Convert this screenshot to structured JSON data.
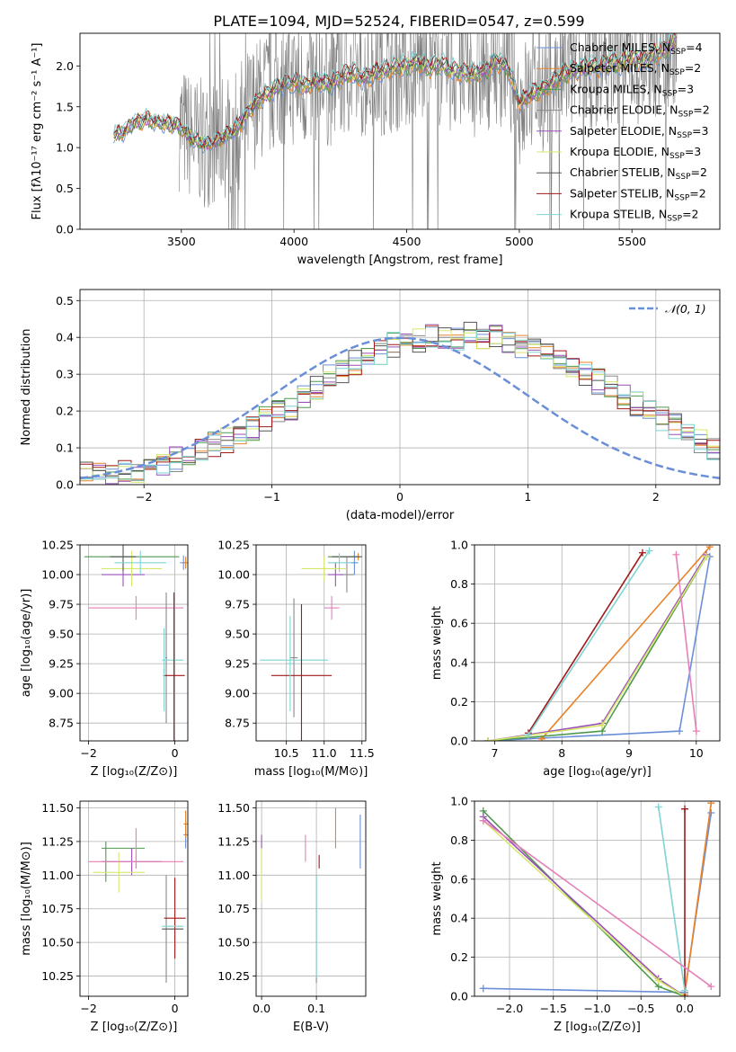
{
  "figure_title": "PLATE=1094, MJD=52524, FIBERID=0547, z=0.599",
  "models": [
    {
      "name": "Chabrier MILES, N$_{SSP}$=4",
      "short": "Chabrier MILES, N",
      "nssp": "4",
      "color": "#6a8fd8"
    },
    {
      "name": "Salpeter MILES, N$_{SSP}$=2",
      "short": "Salpeter MILES, N",
      "nssp": "2",
      "color": "#e8832a"
    },
    {
      "name": "Kroupa MILES, N$_{SSP}$=3",
      "short": "Kroupa MILES, N",
      "nssp": "3",
      "color": "#4f9a4f"
    },
    {
      "name": "Chabrier ELODIE, N$_{SSP}$=2",
      "short": "Chabrier ELODIE, N",
      "nssp": "2",
      "color": "#888888"
    },
    {
      "name": "Salpeter ELODIE, N$_{SSP}$=3",
      "short": "Salpeter ELODIE, N",
      "nssp": "3",
      "color": "#9b4fb8"
    },
    {
      "name": "Kroupa ELODIE, N$_{SSP}$=3",
      "short": "Kroupa ELODIE, N",
      "nssp": "3",
      "color": "#d6e86a"
    },
    {
      "name": "Chabrier STELIB, N$_{SSP}$=2",
      "short": "Chabrier STELIB, N",
      "nssp": "2",
      "color": "#555555"
    },
    {
      "name": "Salpeter STELIB, N$_{SSP}$=2",
      "short": "Salpeter STELIB, N",
      "nssp": "2",
      "color": "#a01818"
    },
    {
      "name": "Kroupa STELIB, N$_{SSP}$=2",
      "short": "Kroupa STELIB, N",
      "nssp": "2",
      "color": "#7fd3d3"
    }
  ],
  "extra_colors": {
    "pink": "#e67fb8",
    "data": "#808080",
    "ref": "#6a8fd8"
  },
  "chart_data": [
    {
      "id": "spectrum",
      "type": "line",
      "xlabel": "wavelength [Angstrom, rest frame]",
      "ylabel": "Flux [fλ10⁻¹⁷ erg cm⁻² s⁻¹ A⁻¹]",
      "xlim": [
        3050,
        5890
      ],
      "ylim": [
        0,
        2.4
      ],
      "xticks": [
        "3500",
        "4000",
        "4500",
        "5000",
        "5500"
      ],
      "xtick_values": [
        3500,
        4000,
        4500,
        5000,
        5500
      ],
      "yticks": [
        "0.0",
        "0.5",
        "1.0",
        "1.5",
        "2.0"
      ],
      "ytick_values": [
        0,
        0.5,
        1,
        1.5,
        2
      ],
      "model_envelope": {
        "x": [
          3200,
          3250,
          3300,
          3350,
          3400,
          3450,
          3500,
          3550,
          3600,
          3650,
          3700,
          3750,
          3800,
          3850,
          3900,
          3950,
          4000,
          4050,
          4100,
          4150,
          4200,
          4250,
          4300,
          4350,
          4400,
          4450,
          4500,
          4550,
          4600,
          4650,
          4700,
          4750,
          4800,
          4850,
          4900,
          4950,
          5000,
          5050,
          5100,
          5150,
          5200,
          5250,
          5300,
          5350,
          5400,
          5450,
          5500,
          5550,
          5600,
          5650,
          5700
        ],
        "y": [
          1.15,
          1.2,
          1.32,
          1.35,
          1.3,
          1.3,
          1.25,
          1.1,
          1.05,
          1.08,
          1.15,
          1.25,
          1.45,
          1.6,
          1.7,
          1.78,
          1.8,
          1.75,
          1.82,
          1.78,
          1.85,
          1.92,
          1.85,
          1.9,
          1.95,
          1.98,
          2.0,
          2.05,
          1.98,
          2.02,
          1.95,
          1.92,
          1.9,
          1.95,
          2.05,
          1.98,
          1.55,
          1.65,
          1.72,
          1.8,
          1.9,
          1.95,
          2.0,
          1.98,
          2.05,
          2.02,
          2.1,
          2.05,
          2.15,
          2.2,
          2.35
        ]
      },
      "data_region": [
        3490,
        5700
      ]
    },
    {
      "id": "residuals",
      "type": "histogram",
      "xlabel": "(data-model)/error",
      "ylabel": "Normed distribution",
      "xlim": [
        -2.5,
        2.5
      ],
      "ylim": [
        0,
        0.53
      ],
      "xticks": [
        "−2",
        "−1",
        "0",
        "1",
        "2"
      ],
      "xtick_values": [
        -2,
        -1,
        0,
        1,
        2
      ],
      "yticks": [
        "0.0",
        "0.1",
        "0.2",
        "0.3",
        "0.4",
        "0.5"
      ],
      "ytick_values": [
        0,
        0.1,
        0.2,
        0.3,
        0.4,
        0.5
      ],
      "legend": "𝒩(0, 1)",
      "bins": {
        "start": -2.5,
        "width": 0.1
      },
      "base_density": [
        0.03,
        0.03,
        0.03,
        0.04,
        0.04,
        0.05,
        0.06,
        0.07,
        0.08,
        0.1,
        0.11,
        0.12,
        0.14,
        0.15,
        0.18,
        0.2,
        0.21,
        0.24,
        0.26,
        0.29,
        0.31,
        0.33,
        0.34,
        0.36,
        0.38,
        0.39,
        0.39,
        0.4,
        0.4,
        0.4,
        0.41,
        0.4,
        0.4,
        0.39,
        0.38,
        0.37,
        0.35,
        0.34,
        0.32,
        0.3,
        0.28,
        0.26,
        0.24,
        0.22,
        0.2,
        0.18,
        0.16,
        0.14,
        0.12,
        0.1
      ]
    },
    {
      "id": "age_vs_Z",
      "type": "scatter",
      "xlabel": "Z [log₁₀(Z/Z⊙)]",
      "ylabel": "age  [log₁₀(age/yr)]",
      "xlim": [
        -2.2,
        0.3
      ],
      "ylim": [
        8.6,
        10.25
      ],
      "xticks": [
        "−2",
        "0"
      ],
      "xtick_values": [
        -2,
        0
      ],
      "yticks": [
        "8.75",
        "9.00",
        "9.25",
        "9.50",
        "9.75",
        "10.00",
        "10.25"
      ],
      "ytick_values": [
        8.75,
        9,
        9.25,
        9.5,
        9.75,
        10,
        10.25
      ],
      "points": [
        {
          "x": 0.2,
          "y": 10.1,
          "ex": 0.08,
          "ey": 0.06,
          "c": 0
        },
        {
          "x": 0.25,
          "y": 10.1,
          "ex": 0.05,
          "ey": 0.05,
          "c": 1
        },
        {
          "x": -1.6,
          "y": 10.15,
          "ex": 0.0,
          "ey": 0.0,
          "c": 2
        },
        {
          "x": -1.0,
          "y": 10.15,
          "ex": 1.1,
          "ey": 0.0,
          "c": 2
        },
        {
          "x": -0.4,
          "y": 10.15,
          "ex": 0.0,
          "ey": 0.0,
          "c": 3
        },
        {
          "x": -1.2,
          "y": 10.0,
          "ex": 0.5,
          "ey": 0.1,
          "c": 4
        },
        {
          "x": -1.0,
          "y": 10.05,
          "ex": 0.7,
          "ey": 0.15,
          "c": 5
        },
        {
          "x": -1.2,
          "y": 10.15,
          "ex": 0.3,
          "ey": 0.12,
          "c": 6
        },
        {
          "x": -0.8,
          "y": 10.1,
          "ex": 0.6,
          "ey": 0.1,
          "c": 8
        },
        {
          "x": -0.9,
          "y": 9.72,
          "ex": 1.1,
          "ey": 0.1,
          "c": 9
        },
        {
          "x": -0.2,
          "y": 9.3,
          "ex": 0.02,
          "ey": 0.55,
          "c": 3
        },
        {
          "x": -0.05,
          "y": 9.28,
          "ex": 0.25,
          "ey": 0.0,
          "c": 8
        },
        {
          "x": -0.02,
          "y": 9.15,
          "ex": 0.25,
          "ey": 0.7,
          "c": 7
        },
        {
          "x": -0.25,
          "y": 9.2,
          "ex": 0.02,
          "ey": 0.35,
          "c": 8
        }
      ]
    },
    {
      "id": "age_vs_mass",
      "type": "scatter",
      "xlabel": "mass [log₁₀(M/M⊙)]",
      "ylabel": "",
      "xlim": [
        10.1,
        11.55
      ],
      "ylim": [
        8.6,
        10.25
      ],
      "xticks": [
        "10.5",
        "11.0",
        "11.5"
      ],
      "xtick_values": [
        10.5,
        11,
        11.5
      ],
      "yticks": [
        "8.75",
        "9.00",
        "9.25",
        "9.50",
        "9.75",
        "10.00",
        "10.25"
      ],
      "ytick_values": [
        8.75,
        9,
        9.25,
        9.5,
        9.75,
        10,
        10.25
      ],
      "points": [
        {
          "x": 11.4,
          "y": 10.1,
          "ex": 0.05,
          "ey": 0.1,
          "c": 0
        },
        {
          "x": 11.45,
          "y": 10.15,
          "ex": 0.02,
          "ey": 0.03,
          "c": 1
        },
        {
          "x": 11.25,
          "y": 10.15,
          "ex": 0.2,
          "ey": 0.0,
          "c": 2
        },
        {
          "x": 11.3,
          "y": 10.0,
          "ex": 0.1,
          "ey": 0.15,
          "c": 3
        },
        {
          "x": 11.15,
          "y": 10.0,
          "ex": 0.1,
          "ey": 0.1,
          "c": 4
        },
        {
          "x": 11.0,
          "y": 10.05,
          "ex": 0.3,
          "ey": 0.1,
          "c": 5
        },
        {
          "x": 11.3,
          "y": 10.15,
          "ex": 0.2,
          "ey": 0.0,
          "c": 6
        },
        {
          "x": 11.2,
          "y": 10.1,
          "ex": 0.15,
          "ey": 0.08,
          "c": 8
        },
        {
          "x": 11.1,
          "y": 9.72,
          "ex": 0.1,
          "ey": 0.1,
          "c": 9
        },
        {
          "x": 10.6,
          "y": 9.3,
          "ex": 0.05,
          "ey": 0.5,
          "c": 3
        },
        {
          "x": 10.6,
          "y": 9.28,
          "ex": 0.45,
          "ey": 0.0,
          "c": 8
        },
        {
          "x": 10.7,
          "y": 9.15,
          "ex": 0.4,
          "ey": 0.6,
          "c": 7
        },
        {
          "x": 10.55,
          "y": 9.25,
          "ex": 0.05,
          "ey": 0.4,
          "c": 8
        }
      ]
    },
    {
      "id": "weight_vs_age",
      "type": "line",
      "xlabel": "age  [log₁₀(age/yr)]",
      "ylabel": "mass weight",
      "xlim": [
        6.7,
        10.35
      ],
      "ylim": [
        0,
        1.0
      ],
      "xticks": [
        "7",
        "8",
        "9",
        "10"
      ],
      "xtick_values": [
        7,
        8,
        9,
        10
      ],
      "yticks": [
        "0.0",
        "0.2",
        "0.4",
        "0.6",
        "0.8",
        "1.0"
      ],
      "ytick_values": [
        0,
        0.2,
        0.4,
        0.6,
        0.8,
        1.0
      ],
      "series": [
        {
          "c": 0,
          "x": [
            6.9,
            9.75,
            10.2
          ],
          "y": [
            0.0,
            0.05,
            0.94
          ]
        },
        {
          "c": 1,
          "x": [
            7.7,
            10.2
          ],
          "y": [
            0.01,
            0.99
          ]
        },
        {
          "c": 2,
          "x": [
            6.9,
            8.6,
            10.15
          ],
          "y": [
            0.0,
            0.05,
            0.94
          ]
        },
        {
          "c": 4,
          "x": [
            6.9,
            8.6,
            10.15
          ],
          "y": [
            0.0,
            0.09,
            0.95
          ]
        },
        {
          "c": 5,
          "x": [
            6.9,
            8.6,
            10.15
          ],
          "y": [
            0.0,
            0.08,
            0.94
          ]
        },
        {
          "c": 7,
          "x": [
            7.5,
            9.2
          ],
          "y": [
            0.04,
            0.96
          ]
        },
        {
          "c": 8,
          "x": [
            7.5,
            9.3
          ],
          "y": [
            0.03,
            0.97
          ]
        },
        {
          "c": 9,
          "x": [
            9.7,
            10.0
          ],
          "y": [
            0.95,
            0.05
          ]
        }
      ]
    },
    {
      "id": "mass_vs_Z",
      "type": "scatter",
      "xlabel": "Z [log₁₀(Z/Z⊙)]",
      "ylabel": "mass [log₁₀(M/M⊙)]",
      "xlim": [
        -2.2,
        0.3
      ],
      "ylim": [
        10.1,
        11.55
      ],
      "xticks": [
        "−2",
        "0"
      ],
      "xtick_values": [
        -2,
        0
      ],
      "yticks": [
        "10.25",
        "10.50",
        "10.75",
        "11.00",
        "11.25",
        "11.50"
      ],
      "ytick_values": [
        10.25,
        10.5,
        10.75,
        11,
        11.25,
        11.5
      ],
      "points": [
        {
          "x": 0.25,
          "y": 11.3,
          "ex": 0.05,
          "ey": 0.1,
          "c": 0
        },
        {
          "x": 0.25,
          "y": 11.38,
          "ex": 0.05,
          "ey": 0.1,
          "c": 1
        },
        {
          "x": -1.2,
          "y": 11.2,
          "ex": 0.5,
          "ey": 0.0,
          "c": 2
        },
        {
          "x": -1.6,
          "y": 11.1,
          "ex": 0.0,
          "ey": 0.15,
          "c": 2
        },
        {
          "x": -1.0,
          "y": 11.1,
          "ex": 0.7,
          "ey": 0.1,
          "c": 4
        },
        {
          "x": -1.3,
          "y": 11.02,
          "ex": 0.6,
          "ey": 0.15,
          "c": 5
        },
        {
          "x": -0.9,
          "y": 11.1,
          "ex": 1.1,
          "ey": 0.05,
          "c": 9
        },
        {
          "x": -0.9,
          "y": 11.2,
          "ex": 0.0,
          "ey": 0.15,
          "c": 9
        },
        {
          "x": -0.2,
          "y": 10.6,
          "ex": 0.0,
          "ey": 0.4,
          "c": 3
        },
        {
          "x": 0.0,
          "y": 10.68,
          "ex": 0.25,
          "ey": 0.3,
          "c": 7
        },
        {
          "x": -0.05,
          "y": 10.6,
          "ex": 0.25,
          "ey": 0.0,
          "c": 6
        },
        {
          "x": -0.05,
          "y": 10.62,
          "ex": 0.25,
          "ey": 0.0,
          "c": 8
        }
      ]
    },
    {
      "id": "mass_vs_EBV",
      "type": "scatter",
      "xlabel": "E(B-V)",
      "ylabel": "",
      "xlim": [
        -0.01,
        0.19
      ],
      "ylim": [
        10.1,
        11.55
      ],
      "xticks": [
        "0.0",
        "0.1"
      ],
      "xtick_values": [
        0,
        0.1
      ],
      "yticks": [
        "10.25",
        "10.50",
        "10.75",
        "11.00",
        "11.25",
        "11.50"
      ],
      "ytick_values": [
        10.25,
        10.5,
        10.75,
        11,
        11.25,
        11.5
      ],
      "points": [
        {
          "x": 0.18,
          "y": 11.25,
          "ex": 0.0,
          "ey": 0.2,
          "c": 0
        },
        {
          "x": 0.135,
          "y": 11.35,
          "ex": 0.0,
          "ey": 0.15,
          "c": 1
        },
        {
          "x": 0.0,
          "y": 11.25,
          "ex": 0.0,
          "ey": 0.05,
          "c": 4
        },
        {
          "x": 0.0,
          "y": 11.0,
          "ex": 0.0,
          "ey": 0.2,
          "c": 5
        },
        {
          "x": 0.105,
          "y": 11.1,
          "ex": 0.0,
          "ey": 0.05,
          "c": 7
        },
        {
          "x": 0.1,
          "y": 10.6,
          "ex": 0.0,
          "ey": 0.4,
          "c": 3
        },
        {
          "x": 0.1,
          "y": 10.62,
          "ex": 0.0,
          "ey": 0.38,
          "c": 8
        },
        {
          "x": 0.08,
          "y": 11.2,
          "ex": 0.0,
          "ey": 0.1,
          "c": 9
        }
      ]
    },
    {
      "id": "weight_vs_Z",
      "type": "line",
      "xlabel": "Z [log₁₀(Z/Z⊙)]",
      "ylabel": "mass weight",
      "xlim": [
        -2.4,
        0.4
      ],
      "ylim": [
        0,
        1.0
      ],
      "xticks": [
        "−2.0",
        "−1.5",
        "−1.0",
        "−0.5",
        "0.0"
      ],
      "xtick_values": [
        -2,
        -1.5,
        -1,
        -0.5,
        0
      ],
      "yticks": [
        "0.0",
        "0.2",
        "0.4",
        "0.6",
        "0.8",
        "1.0"
      ],
      "ytick_values": [
        0,
        0.2,
        0.4,
        0.6,
        0.8,
        1.0
      ],
      "series": [
        {
          "c": 0,
          "x": [
            -2.3,
            0.0,
            0.3
          ],
          "y": [
            0.04,
            0.02,
            0.94
          ]
        },
        {
          "c": 1,
          "x": [
            0.0,
            0.3
          ],
          "y": [
            0.01,
            0.99
          ]
        },
        {
          "c": 2,
          "x": [
            -2.3,
            -0.3,
            0.0
          ],
          "y": [
            0.95,
            0.05,
            0.0
          ]
        },
        {
          "c": 4,
          "x": [
            -2.3,
            -0.3,
            0.0
          ],
          "y": [
            0.92,
            0.09,
            0.0
          ]
        },
        {
          "c": 5,
          "x": [
            -2.3,
            -0.3,
            0.0
          ],
          "y": [
            0.9,
            0.08,
            0.0
          ]
        },
        {
          "c": 7,
          "x": [
            0.0,
            0.0
          ],
          "y": [
            0.0,
            0.96
          ]
        },
        {
          "c": 8,
          "x": [
            -0.3,
            0.0
          ],
          "y": [
            0.97,
            0.03
          ]
        },
        {
          "c": 9,
          "x": [
            -2.3,
            0.3
          ],
          "y": [
            0.9,
            0.05
          ]
        }
      ]
    }
  ]
}
